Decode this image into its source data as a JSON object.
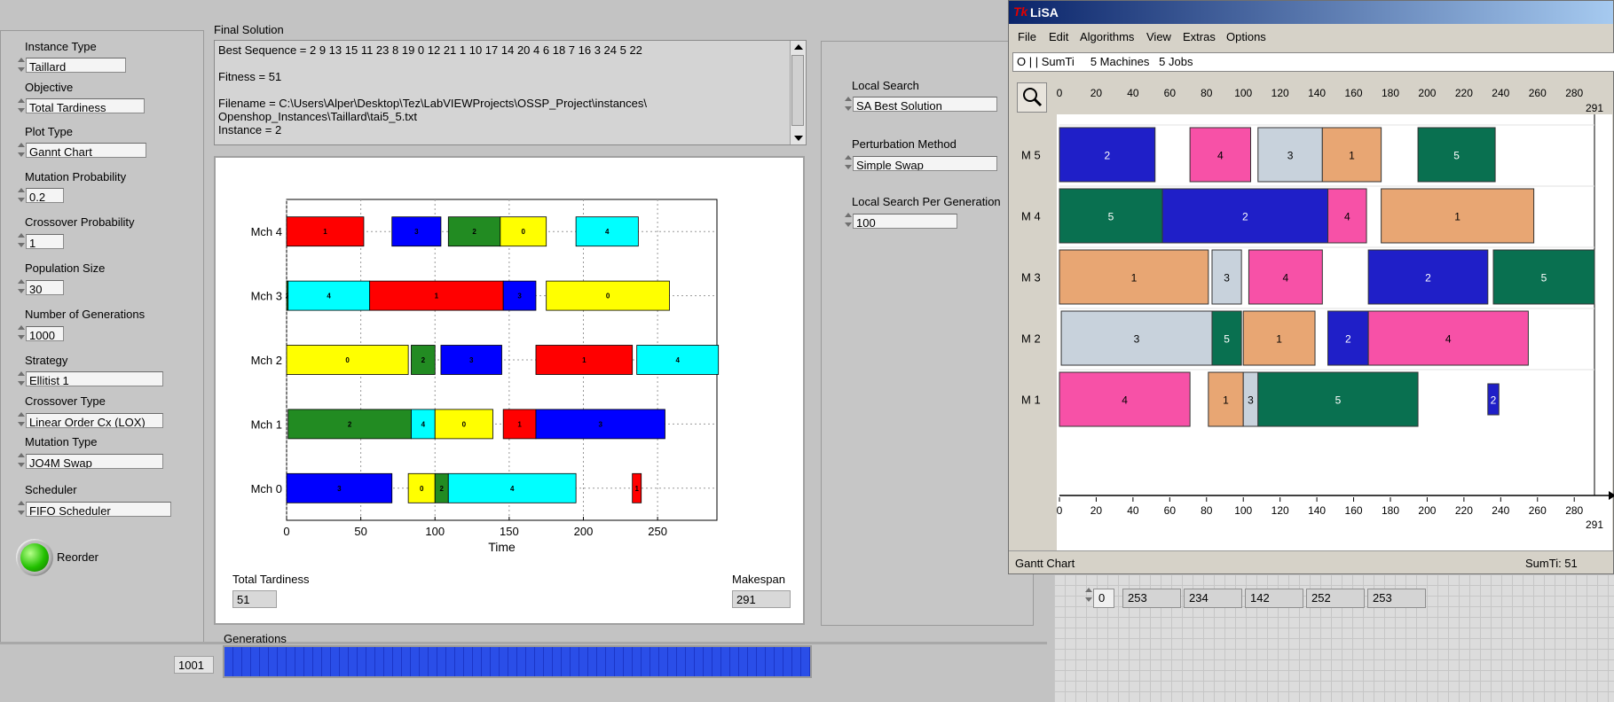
{
  "labview": {
    "left_panel": {
      "instance_type": {
        "label": "Instance Type",
        "value": "Taillard"
      },
      "objective": {
        "label": "Objective",
        "value": "Total Tardiness"
      },
      "plot_type": {
        "label": "Plot Type",
        "value": "Gannt Chart"
      },
      "mutation_probability": {
        "label": "Mutation Probability",
        "value": "0.2"
      },
      "crossover_probability": {
        "label": "Crossover Probability",
        "value": "1"
      },
      "population_size": {
        "label": "Population Size",
        "value": "30"
      },
      "number_of_generations": {
        "label": "Number of Generations",
        "value": "1000"
      },
      "strategy": {
        "label": "Strategy",
        "value": "Ellitist 1"
      },
      "crossover_type": {
        "label": "Crossover Type",
        "value": "Linear Order Cx (LOX)"
      },
      "mutation_type": {
        "label": "Mutation Type",
        "value": "JO4M Swap"
      },
      "scheduler": {
        "label": "Scheduler",
        "value": "FIFO Scheduler"
      },
      "reorder_label": "Reorder",
      "reorder_led_color": "#22c000"
    },
    "final_solution": {
      "title": "Final Solution",
      "lines": [
        "Best Sequence = 2 9 13 15 11 23 8 19 0 12 21 1 10 17 14 20 4 6 18 7 16 3 24 5 22",
        "",
        "Fitness = 51",
        "",
        "Filename = C:\\Users\\Alper\\Desktop\\Tez\\LabVIEWProjects\\OSSP_Project\\instances\\",
        "Openshop_Instances\\Taillard\\tai5_5.txt",
        "Instance = 2"
      ]
    },
    "result": {
      "total_tardiness_label": "Total Tardiness",
      "total_tardiness": "51",
      "makespan_label": "Makespan",
      "makespan": "291"
    },
    "generations": {
      "label": "Generations",
      "value": "1001",
      "progress": 1.0
    },
    "right_panel": {
      "local_search": {
        "label": "Local Search",
        "value": "SA Best Solution"
      },
      "perturbation_method": {
        "label": "Perturbation Method",
        "value": "Simple Swap"
      },
      "local_search_per_generation": {
        "label": "Local Search Per Generation",
        "value": "100"
      }
    },
    "array": {
      "index": "0",
      "values": [
        "253",
        "234",
        "142",
        "252",
        "253"
      ]
    }
  },
  "lisa": {
    "title": "LiSA",
    "menu": [
      "File",
      "Edit",
      "Algorithms",
      "View",
      "Extras",
      "Options"
    ],
    "problem": "O | | SumTi     5 Machines   5 Jobs",
    "status_left": "Gantt Chart",
    "status_right": "SumTi: 51"
  },
  "chart_data": [
    {
      "type": "gantt",
      "xlabel": "Time",
      "xlim": [
        0,
        290
      ],
      "xticks": [
        0,
        50,
        100,
        150,
        200,
        250
      ],
      "grid": true,
      "machines": [
        "Mch 0",
        "Mch 1",
        "Mch 2",
        "Mch 3",
        "Mch 4"
      ],
      "job_colors": {
        "0": "#ffff00",
        "1": "#ff0000",
        "2": "#228b22",
        "3": "#0000ff",
        "4": "#00ffff"
      },
      "tasks": [
        {
          "machine": 0,
          "job": 3,
          "start": 0,
          "end": 71
        },
        {
          "machine": 0,
          "job": 0,
          "start": 82,
          "end": 100
        },
        {
          "machine": 0,
          "job": 2,
          "start": 100,
          "end": 109
        },
        {
          "machine": 0,
          "job": 4,
          "start": 109,
          "end": 195
        },
        {
          "machine": 0,
          "job": 1,
          "start": 233,
          "end": 239
        },
        {
          "machine": 1,
          "job": 2,
          "start": 1,
          "end": 84
        },
        {
          "machine": 1,
          "job": 4,
          "start": 84,
          "end": 100
        },
        {
          "machine": 1,
          "job": 0,
          "start": 100,
          "end": 139
        },
        {
          "machine": 1,
          "job": 1,
          "start": 146,
          "end": 168
        },
        {
          "machine": 1,
          "job": 3,
          "start": 168,
          "end": 255
        },
        {
          "machine": 2,
          "job": 0,
          "start": 0,
          "end": 82
        },
        {
          "machine": 2,
          "job": 2,
          "start": 84,
          "end": 100
        },
        {
          "machine": 2,
          "job": 3,
          "start": 104,
          "end": 145
        },
        {
          "machine": 2,
          "job": 1,
          "start": 168,
          "end": 233
        },
        {
          "machine": 2,
          "job": 4,
          "start": 236,
          "end": 291
        },
        {
          "machine": 3,
          "job": 2,
          "start": 0,
          "end": 1
        },
        {
          "machine": 3,
          "job": 4,
          "start": 1,
          "end": 56
        },
        {
          "machine": 3,
          "job": 1,
          "start": 56,
          "end": 146
        },
        {
          "machine": 3,
          "job": 3,
          "start": 146,
          "end": 168
        },
        {
          "machine": 3,
          "job": 0,
          "start": 175,
          "end": 258
        },
        {
          "machine": 4,
          "job": 1,
          "start": 0,
          "end": 52
        },
        {
          "machine": 4,
          "job": 3,
          "start": 71,
          "end": 104
        },
        {
          "machine": 4,
          "job": 2,
          "start": 109,
          "end": 144
        },
        {
          "machine": 4,
          "job": 0,
          "start": 144,
          "end": 175
        },
        {
          "machine": 4,
          "job": 4,
          "start": 195,
          "end": 237
        }
      ]
    },
    {
      "type": "gantt",
      "xlim": [
        0,
        291
      ],
      "xticks": [
        0,
        20,
        40,
        60,
        80,
        100,
        120,
        140,
        160,
        180,
        200,
        220,
        240,
        260,
        280
      ],
      "end_label": "291",
      "machines": [
        "M 5",
        "M 4",
        "M 3",
        "M 2",
        "M 1"
      ],
      "job_colors": {
        "1": "#e8a673",
        "2": "#1f1fc8",
        "3": "#c8d2dc",
        "4": "#f751a7",
        "5": "#097050"
      },
      "tasks": [
        {
          "machine": "M 5",
          "job": 2,
          "start": 0,
          "end": 52
        },
        {
          "machine": "M 5",
          "job": 4,
          "start": 71,
          "end": 104
        },
        {
          "machine": "M 5",
          "job": 3,
          "start": 108,
          "end": 143
        },
        {
          "machine": "M 5",
          "job": 1,
          "start": 143,
          "end": 175
        },
        {
          "machine": "M 5",
          "job": 5,
          "start": 195,
          "end": 237
        },
        {
          "machine": "M 4",
          "job": 5,
          "start": 0,
          "end": 56
        },
        {
          "machine": "M 4",
          "job": 2,
          "start": 56,
          "end": 146
        },
        {
          "machine": "M 4",
          "job": 4,
          "start": 146,
          "end": 167
        },
        {
          "machine": "M 4",
          "job": 1,
          "start": 175,
          "end": 258
        },
        {
          "machine": "M 3",
          "job": 1,
          "start": 0,
          "end": 81
        },
        {
          "machine": "M 3",
          "job": 3,
          "start": 83,
          "end": 99
        },
        {
          "machine": "M 3",
          "job": 4,
          "start": 103,
          "end": 143
        },
        {
          "machine": "M 3",
          "job": 2,
          "start": 168,
          "end": 233
        },
        {
          "machine": "M 3",
          "job": 5,
          "start": 236,
          "end": 291
        },
        {
          "machine": "M 2",
          "job": 3,
          "start": 1,
          "end": 83
        },
        {
          "machine": "M 2",
          "job": 5,
          "start": 83,
          "end": 99
        },
        {
          "machine": "M 2",
          "job": 1,
          "start": 100,
          "end": 139
        },
        {
          "machine": "M 2",
          "job": 2,
          "start": 146,
          "end": 168
        },
        {
          "machine": "M 2",
          "job": 4,
          "start": 168,
          "end": 255
        },
        {
          "machine": "M 1",
          "job": 4,
          "start": 0,
          "end": 71
        },
        {
          "machine": "M 1",
          "job": 1,
          "start": 81,
          "end": 100
        },
        {
          "machine": "M 1",
          "job": 3,
          "start": 100,
          "end": 108
        },
        {
          "machine": "M 1",
          "job": 5,
          "start": 108,
          "end": 195
        },
        {
          "machine": "M 1",
          "job": 2,
          "start": 233,
          "end": 239
        }
      ]
    }
  ]
}
